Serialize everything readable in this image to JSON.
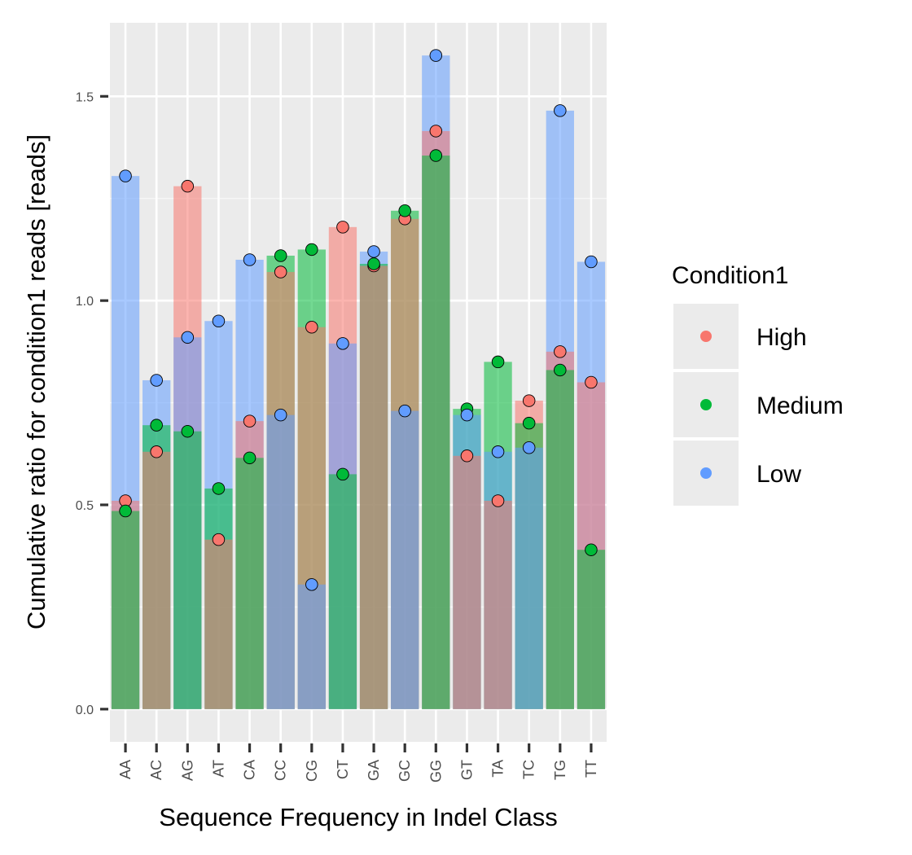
{
  "chart_data": {
    "type": "bar",
    "title": "",
    "xlabel": "Sequence Frequency in Indel Class",
    "ylabel": "Cumulative ratio for condition1 reads [reads]",
    "categories": [
      "AA",
      "AC",
      "AG",
      "AT",
      "CA",
      "CC",
      "CG",
      "CT",
      "GA",
      "GC",
      "GG",
      "GT",
      "TA",
      "TC",
      "TG",
      "TT"
    ],
    "ylim": [
      -0.08,
      1.68
    ],
    "yticks": [
      0.0,
      0.5,
      1.0,
      1.5
    ],
    "yticks_labels": [
      "0.0",
      "0.5",
      "1.0",
      "1.5"
    ],
    "grid": true,
    "legend": {
      "title": "Condition1",
      "placement": "right",
      "entries": [
        "High",
        "Medium",
        "Low"
      ]
    },
    "series": [
      {
        "name": "High",
        "color": "#F8766D",
        "values": [
          0.51,
          0.63,
          1.28,
          0.415,
          0.705,
          1.07,
          0.935,
          1.18,
          1.085,
          1.2,
          1.415,
          0.62,
          0.51,
          0.755,
          0.875,
          0.8
        ]
      },
      {
        "name": "Medium",
        "color": "#00BA38",
        "values": [
          0.485,
          0.695,
          0.68,
          0.54,
          0.615,
          1.11,
          1.125,
          0.575,
          1.09,
          1.22,
          1.355,
          0.735,
          0.85,
          0.7,
          0.83,
          0.39
        ]
      },
      {
        "name": "Low",
        "color": "#619CFF",
        "values": [
          1.305,
          0.805,
          0.91,
          0.95,
          1.1,
          0.72,
          0.305,
          0.895,
          1.12,
          0.73,
          1.6,
          0.72,
          0.63,
          0.64,
          1.465,
          1.095
        ]
      }
    ]
  }
}
